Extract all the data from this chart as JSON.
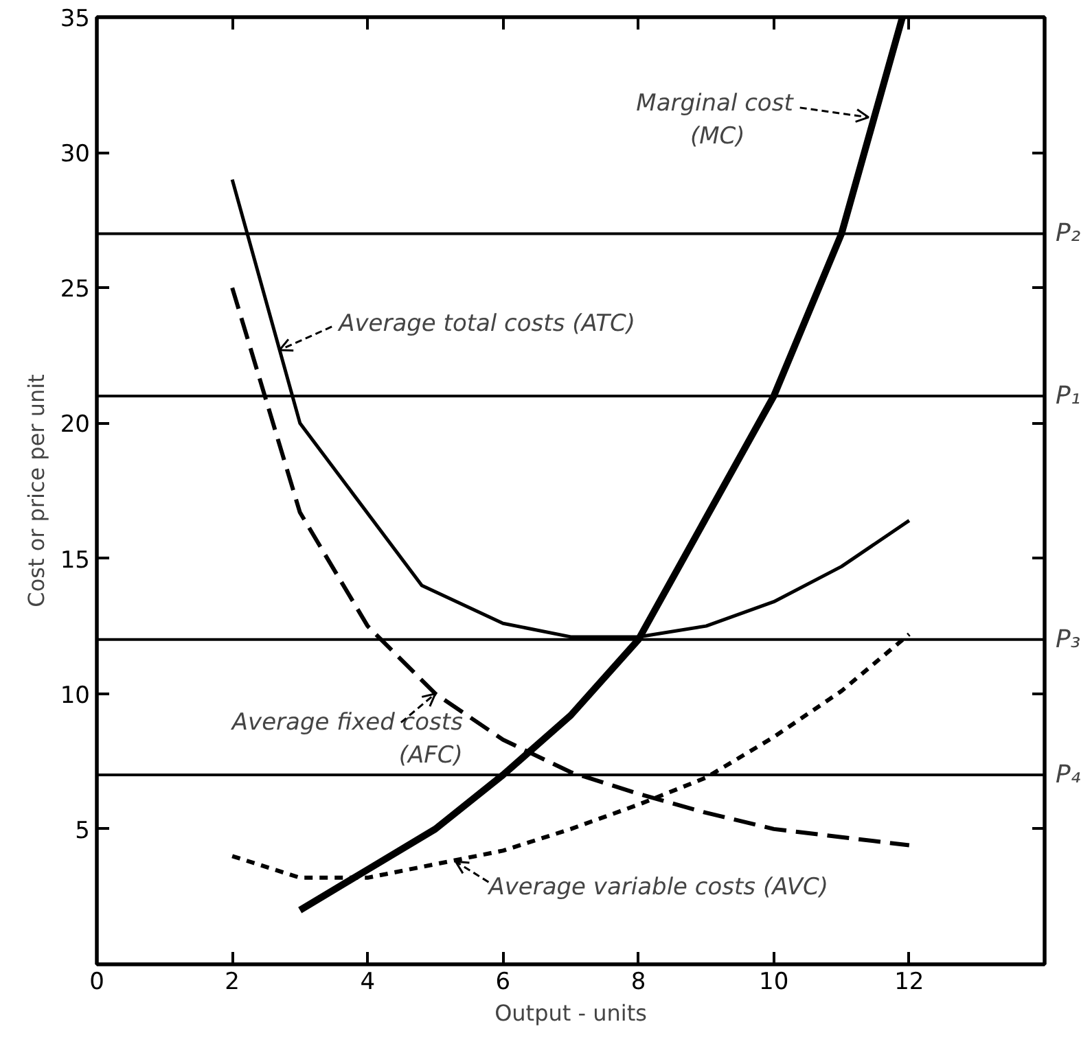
{
  "chart_data": {
    "type": "line",
    "xlabel": "Output - units",
    "ylabel": "Cost or price per unit",
    "xlim": [
      0,
      14
    ],
    "ylim": [
      0,
      35
    ],
    "xticks": [
      0,
      2,
      4,
      6,
      8,
      10,
      12
    ],
    "yticks": [
      5,
      10,
      15,
      20,
      25,
      30,
      35
    ],
    "grid": false,
    "series": [
      {
        "color": "#000000",
        "line_style": "solid",
        "x": [
          3,
          4,
          5,
          6,
          7,
          8,
          9,
          10,
          11,
          11.9
        ],
        "values": [
          2,
          3.5,
          5,
          7,
          9.2,
          12,
          16.5,
          21,
          27,
          35
        ]
      },
      {
        "color": "#000000",
        "line_style": "solid",
        "x": [
          2,
          3,
          4.8,
          6,
          7,
          8,
          9,
          10,
          11,
          12
        ],
        "values": [
          29,
          20,
          14,
          12.6,
          12.1,
          12.1,
          12.5,
          13.4,
          14.7,
          16.4
        ]
      },
      {
        "color": "#000000",
        "line_style": "dashed",
        "x": [
          2,
          3,
          4,
          5,
          6,
          7,
          8,
          9,
          10,
          11,
          12
        ],
        "values": [
          25,
          16.7,
          12.5,
          10,
          8.3,
          7.1,
          6.3,
          5.6,
          5,
          4.7,
          4.4
        ]
      },
      {
        "color": "#000000",
        "line_style": "dotted",
        "x": [
          2,
          3,
          4,
          5,
          6,
          7,
          8,
          9,
          10,
          11,
          12
        ],
        "values": [
          4,
          3.2,
          3.2,
          3.7,
          4.2,
          5,
          5.9,
          6.9,
          8.4,
          10.1,
          12.2
        ]
      }
    ],
    "ref_lines": [
      {
        "axis": "y",
        "value": 27,
        "label": "P₂"
      },
      {
        "axis": "y",
        "value": 21,
        "label": "P₁"
      },
      {
        "axis": "y",
        "value": 12,
        "label": "P₃"
      },
      {
        "axis": "y",
        "value": 7,
        "label": "P₄"
      }
    ],
    "annotations": [
      {
        "text": "Marginal cost\n(MC)",
        "x": 11.4,
        "y": 31.3
      },
      {
        "text": "Average total costs (ATC)",
        "x": 2.7,
        "y": 22.7
      },
      {
        "text": "Average fixed costs\n(AFC)",
        "x": 5,
        "y": 10
      },
      {
        "text": "Average variable costs (AVC)",
        "x": 5.3,
        "y": 3.8
      }
    ]
  }
}
